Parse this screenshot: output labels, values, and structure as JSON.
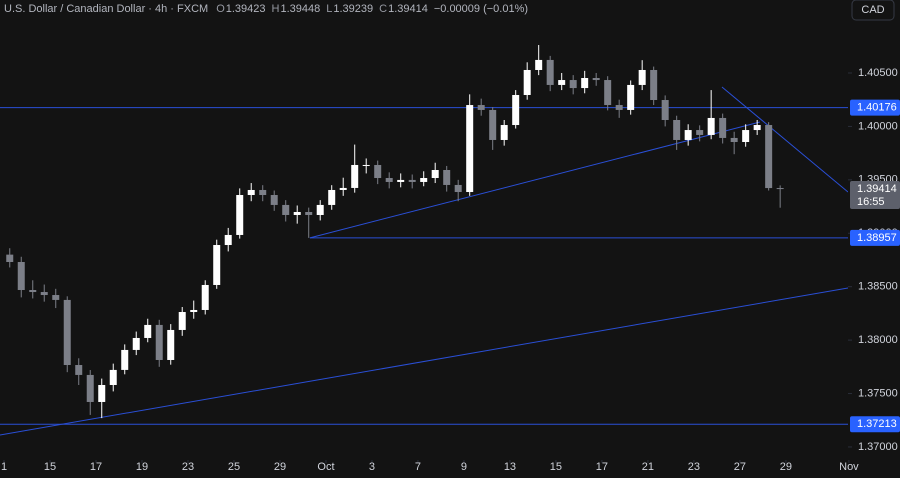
{
  "chart_data": {
    "type": "candlestick",
    "title": "U.S. Dollar / Canadian Dollar · 4h · FXCM",
    "ohlc_keys": [
      "O",
      "H",
      "L",
      "C"
    ],
    "change": "−0.00009 (−0.01%)",
    "currency": "CAD",
    "countdown": "16:55",
    "up_color": "#ffffff",
    "down_color": "#7c7f88",
    "line_color": "#2a4fd6",
    "tag_color": "#2962ff",
    "last_tag_color": "#5d606b",
    "ylim": [
      1.36878,
      1.41183
    ],
    "yticks": [
      {
        "value": 1.405,
        "label": "1.40500"
      },
      {
        "value": 1.4,
        "label": "1.40000"
      },
      {
        "value": 1.395,
        "label": "1.39500"
      },
      {
        "value": 1.39,
        "label": "1.39000"
      },
      {
        "value": 1.385,
        "label": "1.38500"
      },
      {
        "value": 1.38,
        "label": "1.38000"
      },
      {
        "value": 1.375,
        "label": "1.37500"
      },
      {
        "value": 1.37,
        "label": "1.37000"
      }
    ],
    "xlim": [
      -0.174,
      36.7
    ],
    "xticks": [
      {
        "value": 0,
        "label": "1"
      },
      {
        "value": 2,
        "label": "15"
      },
      {
        "value": 4,
        "label": "17"
      },
      {
        "value": 6,
        "label": "19"
      },
      {
        "value": 8,
        "label": "23"
      },
      {
        "value": 10,
        "label": "25"
      },
      {
        "value": 12,
        "label": "29"
      },
      {
        "value": 14,
        "label": "Oct"
      },
      {
        "value": 16,
        "label": "3"
      },
      {
        "value": 18,
        "label": "7"
      },
      {
        "value": 20,
        "label": "9"
      },
      {
        "value": 22,
        "label": "13"
      },
      {
        "value": 24,
        "label": "15"
      },
      {
        "value": 26,
        "label": "17"
      },
      {
        "value": 28,
        "label": "21"
      },
      {
        "value": 30,
        "label": "23"
      },
      {
        "value": 32,
        "label": "27"
      },
      {
        "value": 34,
        "label": "29"
      },
      {
        "value": 36.74,
        "label": "Nov"
      }
    ],
    "x": [
      0.25,
      0.75,
      1.25,
      1.75,
      2.25,
      2.75,
      3.25,
      3.75,
      4.25,
      4.75,
      5.25,
      5.75,
      6.25,
      6.75,
      7.25,
      7.75,
      8.25,
      8.75,
      9.25,
      9.75,
      10.25,
      10.75,
      11.25,
      11.75,
      12.25,
      12.75,
      13.25,
      13.75,
      14.25,
      14.75,
      15.25,
      15.75,
      16.25,
      16.75,
      17.25,
      17.75,
      18.25,
      18.75,
      19.25,
      19.75,
      20.25,
      20.75,
      21.25,
      21.75,
      22.25,
      22.75,
      23.25,
      23.75,
      24.25,
      24.75,
      25.25,
      25.75,
      26.25,
      26.75,
      27.25,
      27.75,
      28.25,
      28.75,
      29.25,
      29.75,
      30.25,
      30.75,
      31.25,
      31.75,
      32.25,
      32.75,
      33.25,
      33.75
    ],
    "open": [
      1.388,
      1.38731,
      1.38469,
      1.3845,
      1.38422,
      1.38376,
      1.37767,
      1.37674,
      1.37421,
      1.3758,
      1.37721,
      1.37908,
      1.3802,
      1.38142,
      1.37814,
      1.38095,
      1.38263,
      1.38282,
      1.38516,
      1.3889,
      1.38984,
      1.39358,
      1.39405,
      1.39358,
      1.39265,
      1.39171,
      1.39199,
      1.39171,
      1.39265,
      1.39405,
      1.39424,
      1.39639,
      1.39639,
      1.39517,
      1.3948,
      1.39499,
      1.3948,
      1.39517,
      1.39592,
      1.39452,
      1.39386,
      1.402,
      1.40154,
      1.39873,
      1.40013,
      1.40294,
      1.40528,
      1.40622,
      1.40388,
      1.40434,
      1.40359,
      1.40453,
      1.40434,
      1.402,
      1.40154,
      1.40388,
      1.40528,
      1.40247,
      1.4006,
      1.39873,
      1.39966,
      1.3992,
      1.40079,
      1.39892,
      1.39854,
      1.39966,
      1.40013,
      1.39423
    ],
    "high": [
      1.3886,
      1.3878,
      1.3856,
      1.3852,
      1.3848,
      1.3841,
      1.3783,
      1.3772,
      1.3764,
      1.3778,
      1.3796,
      1.3808,
      1.382,
      1.3819,
      1.3815,
      1.3831,
      1.3837,
      1.3856,
      1.3894,
      1.3905,
      1.3942,
      1.3947,
      1.3945,
      1.394,
      1.3931,
      1.3926,
      1.3924,
      1.3931,
      1.3945,
      1.3952,
      1.3983,
      1.397,
      1.3968,
      1.3957,
      1.3956,
      1.3955,
      1.3958,
      1.3966,
      1.3963,
      1.395,
      1.403,
      1.4026,
      1.4018,
      1.4006,
      1.4034,
      1.406,
      1.40762,
      1.4066,
      1.405,
      1.4048,
      1.4052,
      1.405,
      1.4047,
      1.4025,
      1.4043,
      1.4062,
      1.4056,
      1.4029,
      1.401,
      1.4002,
      1.4001,
      1.4034,
      1.4012,
      1.3995,
      1.4002,
      1.4006,
      1.4004,
      1.39448
    ],
    "low": [
      1.3868,
      1.384,
      1.3839,
      1.3836,
      1.383,
      1.377,
      1.3758,
      1.373,
      1.3727,
      1.3752,
      1.3768,
      1.3786,
      1.3798,
      1.3775,
      1.3777,
      1.3804,
      1.382,
      1.3824,
      1.3848,
      1.3883,
      1.3895,
      1.393,
      1.393,
      1.3921,
      1.3911,
      1.3909,
      1.38957,
      1.3912,
      1.3922,
      1.3935,
      1.3938,
      1.3956,
      1.3946,
      1.3942,
      1.3943,
      1.3942,
      1.3944,
      1.3947,
      1.3939,
      1.393,
      1.3935,
      1.401,
      1.3978,
      1.3982,
      1.3998,
      1.4025,
      1.4048,
      1.4033,
      1.4034,
      1.403,
      1.4031,
      1.4038,
      1.4015,
      1.4008,
      1.4011,
      1.4034,
      1.402,
      1.4,
      1.3978,
      1.3982,
      1.3986,
      1.3988,
      1.3984,
      1.3974,
      1.3981,
      1.3992,
      1.394,
      1.39239
    ],
    "close": [
      1.38731,
      1.38469,
      1.3845,
      1.38422,
      1.38376,
      1.37767,
      1.37674,
      1.37421,
      1.3758,
      1.37721,
      1.37908,
      1.3802,
      1.38142,
      1.37814,
      1.38095,
      1.38263,
      1.38282,
      1.38516,
      1.3889,
      1.38984,
      1.39358,
      1.39405,
      1.39358,
      1.39265,
      1.39171,
      1.39199,
      1.39171,
      1.39265,
      1.39405,
      1.39424,
      1.39639,
      1.39639,
      1.39517,
      1.3948,
      1.39499,
      1.3948,
      1.39517,
      1.39592,
      1.39452,
      1.39386,
      1.402,
      1.40154,
      1.39873,
      1.40013,
      1.40294,
      1.40528,
      1.40622,
      1.40388,
      1.40434,
      1.40359,
      1.40453,
      1.40434,
      1.402,
      1.40154,
      1.40388,
      1.40528,
      1.40247,
      1.4006,
      1.39873,
      1.39966,
      1.3992,
      1.40079,
      1.39892,
      1.39854,
      1.39966,
      1.40013,
      1.39423,
      1.39414
    ],
    "levels": [
      1.40176,
      1.38957,
      1.37213
    ],
    "level_start": [
      -0.174,
      13.3,
      -0.174
    ],
    "trendlines": [
      {
        "x": [
          -0.174,
          36.7
        ],
        "y": [
          1.37112,
          1.38488
        ]
      },
      {
        "x": [
          13.3,
          32.87
        ],
        "y": [
          1.38957,
          1.40041
        ]
      },
      {
        "x": [
          31.22,
          36.7
        ],
        "y": [
          1.40369,
          1.39386
        ]
      }
    ]
  }
}
